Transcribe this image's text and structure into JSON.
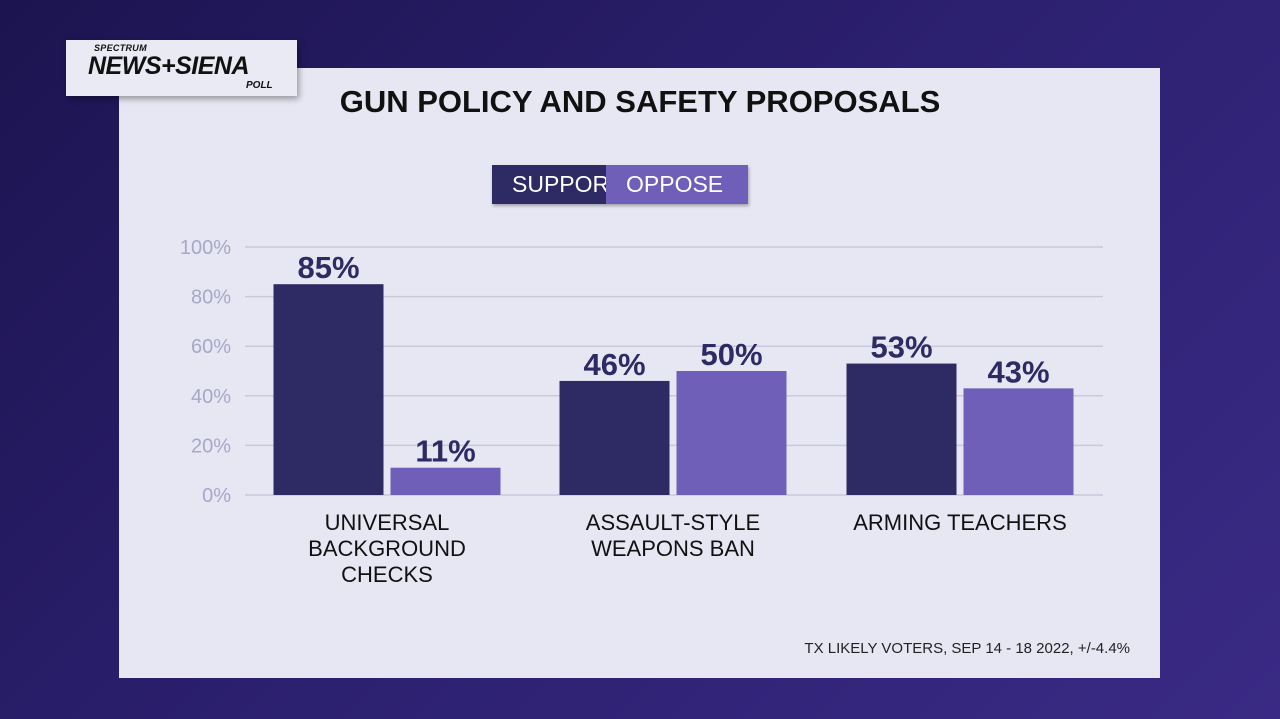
{
  "logo": {
    "line1": "SPECTRUM",
    "line2": "NEWS+SIENA",
    "line3": "POLL"
  },
  "colors": {
    "support": "#2e2a63",
    "oppose": "#6f5fb8",
    "grid": "#c9c9dc",
    "tick": "#a8a7c8",
    "label": "#2e2a63"
  },
  "chart_data": {
    "type": "bar",
    "title": "GUN POLICY AND SAFETY PROPOSALS",
    "categories": [
      "UNIVERSAL BACKGROUND CHECKS",
      "ASSAULT-STYLE WEAPONS BAN",
      "ARMING TEACHERS"
    ],
    "category_lines": [
      [
        "UNIVERSAL",
        "BACKGROUND",
        "CHECKS"
      ],
      [
        "ASSAULT-STYLE",
        "WEAPONS BAN"
      ],
      [
        "ARMING TEACHERS"
      ]
    ],
    "series": [
      {
        "name": "SUPPORT",
        "values": [
          85,
          46,
          53
        ]
      },
      {
        "name": "OPPOSE",
        "values": [
          11,
          50,
          43
        ]
      }
    ],
    "yticks": [
      "0%",
      "20%",
      "40%",
      "60%",
      "80%",
      "100%"
    ],
    "ylim": [
      0,
      100
    ],
    "grid": true,
    "legend": "top-center",
    "footnote": "TX LIKELY VOTERS, SEP 14 - 18 2022, +/-4.4%"
  }
}
